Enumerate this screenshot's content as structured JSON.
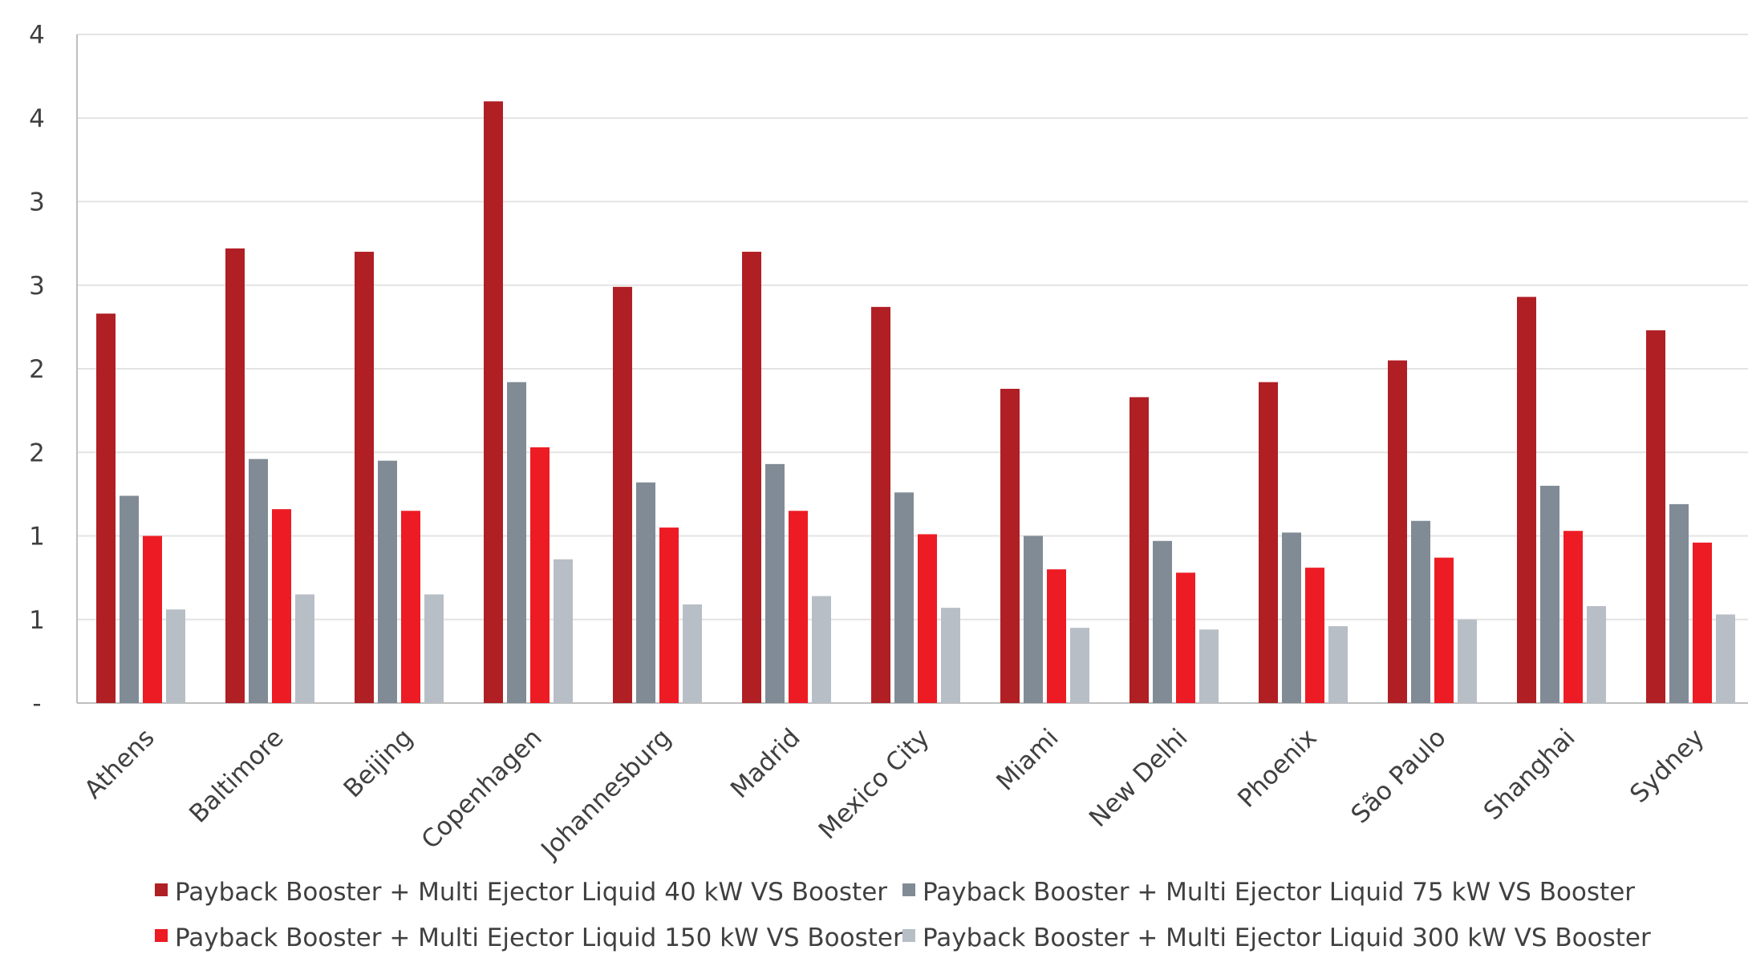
{
  "chart_data": {
    "type": "bar",
    "title": "",
    "xlabel": "",
    "ylabel": "",
    "ylim": [
      0,
      4
    ],
    "y_ticks": [
      {
        "value": 0,
        "label": "-"
      },
      {
        "value": 0.5,
        "label": "1"
      },
      {
        "value": 1.0,
        "label": "1"
      },
      {
        "value": 1.5,
        "label": "2"
      },
      {
        "value": 2.0,
        "label": "2"
      },
      {
        "value": 2.5,
        "label": "3"
      },
      {
        "value": 3.0,
        "label": "3"
      },
      {
        "value": 3.5,
        "label": "4"
      },
      {
        "value": 4.0,
        "label": "4"
      }
    ],
    "grid": true,
    "legend_position": "bottom",
    "categories": [
      "Athens",
      "Baltimore",
      "Beijing",
      "Copenhagen",
      "Johannesburg",
      "Madrid",
      "Mexico City",
      "Miami",
      "New Delhi",
      "Phoenix",
      "São Paulo",
      "Shanghai",
      "Sydney"
    ],
    "series": [
      {
        "name": "Payback Booster + Multi Ejector Liquid 40 kW VS Booster",
        "color": "#b01f24",
        "values": [
          2.33,
          2.72,
          2.7,
          3.6,
          2.49,
          2.7,
          2.37,
          1.88,
          1.83,
          1.92,
          2.05,
          2.43,
          2.23
        ]
      },
      {
        "name": "Payback Booster + Multi Ejector Liquid 75 kW VS Booster",
        "color": "#808b96",
        "values": [
          1.24,
          1.46,
          1.45,
          1.92,
          1.32,
          1.43,
          1.26,
          1.0,
          0.97,
          1.02,
          1.09,
          1.3,
          1.19
        ]
      },
      {
        "name": "Payback Booster + Multi Ejector Liquid 150 kW VS Booster",
        "color": "#ed1c24",
        "values": [
          1.0,
          1.16,
          1.15,
          1.53,
          1.05,
          1.15,
          1.01,
          0.8,
          0.78,
          0.81,
          0.87,
          1.03,
          0.96
        ]
      },
      {
        "name": "Payback Booster + Multi Ejector Liquid 300 kW VS Booster",
        "color": "#b7bec6",
        "values": [
          0.56,
          0.65,
          0.65,
          0.86,
          0.59,
          0.64,
          0.57,
          0.45,
          0.44,
          0.46,
          0.5,
          0.58,
          0.53
        ]
      }
    ]
  }
}
